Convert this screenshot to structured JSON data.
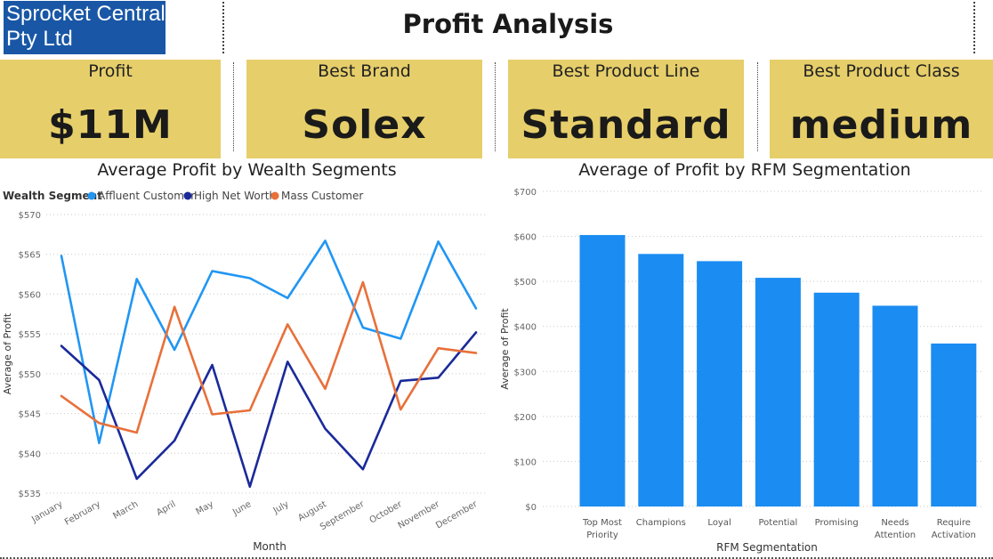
{
  "header": {
    "logo_text_line1": "Sprocket Central",
    "logo_text_line2": "Pty Ltd",
    "title": "Profit Analysis"
  },
  "cards": [
    {
      "label": "Profit",
      "value": "$11M"
    },
    {
      "label": "Best Brand",
      "value": "Solex"
    },
    {
      "label": "Best Product Line",
      "value": "Standard"
    },
    {
      "label": "Best Product Class",
      "value": "medium"
    }
  ],
  "colors": {
    "card_bg": "#e6ce6a",
    "logo_bg": "#1957a6",
    "affluent": "#2196f3",
    "high_net_worth": "#1a2a9a",
    "mass": "#e8703a",
    "bar": "#1b8cf2"
  },
  "chart_data": [
    {
      "type": "line",
      "title": "Average Profit by Wealth Segments",
      "legend_title": "Wealth Segment",
      "legend_position": "top-left",
      "xlabel": "Month",
      "ylabel": "Average of Profit",
      "ylim": [
        535,
        570
      ],
      "yticks": [
        535,
        540,
        545,
        550,
        555,
        560,
        565,
        570
      ],
      "ytick_labels": [
        "$535",
        "$540",
        "$545",
        "$550",
        "$555",
        "$560",
        "$565",
        "$570"
      ],
      "grid": true,
      "x": [
        "January",
        "February",
        "March",
        "April",
        "May",
        "June",
        "July",
        "August",
        "September",
        "October",
        "November",
        "December"
      ],
      "series": [
        {
          "name": "Affluent Customer",
          "color": "#2196f3",
          "values": [
            564.8,
            541.3,
            561.9,
            553.0,
            562.9,
            562.0,
            559.5,
            566.7,
            555.8,
            554.4,
            566.6,
            558.2
          ]
        },
        {
          "name": "High Net Worth",
          "color": "#1a2a9a",
          "values": [
            553.5,
            549.2,
            536.8,
            541.6,
            551.1,
            535.8,
            551.5,
            543.1,
            538.0,
            549.1,
            549.5,
            555.2
          ]
        },
        {
          "name": "Mass Customer",
          "color": "#e8703a",
          "values": [
            547.2,
            543.8,
            542.6,
            558.4,
            544.9,
            545.4,
            556.2,
            548.1,
            561.5,
            545.5,
            553.2,
            552.6
          ]
        }
      ]
    },
    {
      "type": "bar",
      "title": "Average of Profit by RFM Segmentation",
      "xlabel": "RFM Segmentation",
      "ylabel": "Average of Profit",
      "ylim": [
        0,
        700
      ],
      "yticks": [
        0,
        100,
        200,
        300,
        400,
        500,
        600,
        700
      ],
      "ytick_labels": [
        "$0",
        "$100",
        "$200",
        "$300",
        "$400",
        "$500",
        "$600",
        "$700"
      ],
      "grid": true,
      "categories": [
        [
          "Top Most",
          "Priority"
        ],
        [
          "Champions"
        ],
        [
          "Loyal"
        ],
        [
          "Potential"
        ],
        [
          "Promising"
        ],
        [
          "Needs",
          "Attention"
        ],
        [
          "Require",
          "Activation"
        ]
      ],
      "values": [
        603,
        561,
        545,
        508,
        475,
        446,
        362
      ]
    }
  ]
}
